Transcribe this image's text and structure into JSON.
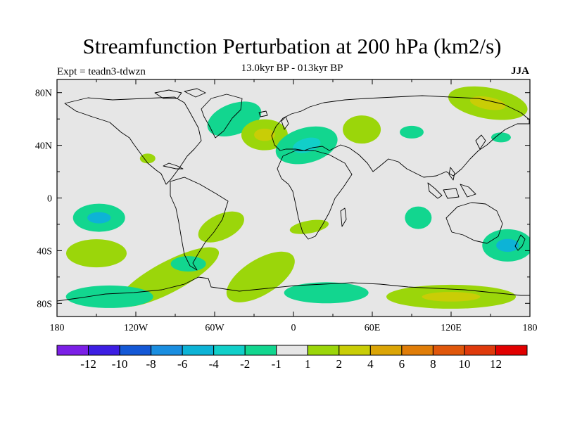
{
  "title": "Streamfunction Perturbation at 200 hPa (km2/s)",
  "experiment": "Expt = teadn3-tdwzn",
  "subtitle": "13.0kyr BP - 013kyr BP",
  "season": "JJA",
  "axes": {
    "lon_labels": [
      "180",
      "120W",
      "60W",
      "0",
      "60E",
      "120E",
      "180"
    ],
    "lat_labels": [
      "80N",
      "40N",
      "0",
      "40S",
      "80S"
    ]
  },
  "colorbar": {
    "colors": [
      "#7b1fe6",
      "#3d1ee3",
      "#1458d6",
      "#1a8ee0",
      "#0db3d6",
      "#11cfc9",
      "#12d68f",
      "#e6e6e6",
      "#9bd60a",
      "#c9cd06",
      "#dba506",
      "#e07d08",
      "#e0570b",
      "#df3a0c",
      "#e10000"
    ],
    "labels": [
      "-12",
      "-10",
      "-8",
      "-6",
      "-4",
      "-2",
      "-1",
      "1",
      "2",
      "4",
      "6",
      "8",
      "10",
      "12"
    ]
  },
  "map_data": {
    "projection": "cylindrical-equidistant",
    "lon_range": [
      -180,
      180
    ],
    "lat_range": [
      -90,
      90
    ],
    "units": "km2/s",
    "background_color": "#e6e6e6",
    "anomalies": [
      {
        "name": "north-atlantic-greenland",
        "lon": -45,
        "lat": 60,
        "value": -1.5,
        "color": "#12d68f"
      },
      {
        "name": "mid-atlantic-high",
        "lon": -22,
        "lat": 48,
        "value": 2.5,
        "color": "#9bd60a",
        "core_color": "#c9cd06"
      },
      {
        "name": "mediterranean",
        "lon": 10,
        "lat": 40,
        "value": -1.5,
        "color": "#12d68f",
        "core_color": "#11cfc9"
      },
      {
        "name": "caspian-high",
        "lon": 52,
        "lat": 52,
        "value": 1.5,
        "color": "#9bd60a"
      },
      {
        "name": "central-asia-low",
        "lon": 90,
        "lat": 50,
        "value": -1.5,
        "color": "#12d68f"
      },
      {
        "name": "siberia-arctic-high",
        "lon": 148,
        "lat": 72,
        "value": 2.5,
        "color": "#9bd60a",
        "core_color": "#c9cd06"
      },
      {
        "name": "kamchatka-low",
        "lon": 158,
        "lat": 46,
        "value": -1.5,
        "color": "#12d68f"
      },
      {
        "name": "mexico-high",
        "lon": -111,
        "lat": 30,
        "value": 1.5,
        "color": "#9bd60a"
      },
      {
        "name": "south-pacific-low",
        "lon": -148,
        "lat": -15,
        "value": -3,
        "color": "#12d68f",
        "core_color": "#0db3d6"
      },
      {
        "name": "south-pacific-high",
        "lon": -150,
        "lat": -42,
        "value": 1.5,
        "color": "#9bd60a"
      },
      {
        "name": "south-america-high",
        "lon": -55,
        "lat": -22,
        "value": 1.5,
        "color": "#9bd60a"
      },
      {
        "name": "south-atlantic-high",
        "lon": 12,
        "lat": -22,
        "value": 1.5,
        "color": "#9bd60a"
      },
      {
        "name": "madagascar-low",
        "lon": 95,
        "lat": -15,
        "value": -1.5,
        "color": "#12d68f"
      },
      {
        "name": "tasman-low",
        "lon": 163,
        "lat": -36,
        "value": -3,
        "color": "#12d68f",
        "core_color": "#0db3d6"
      },
      {
        "name": "southern-ocean-band",
        "lon": -95,
        "lat": -60,
        "value": 1.5,
        "color": "#9bd60a"
      },
      {
        "name": "drake-passage-low",
        "lon": -80,
        "lat": -50,
        "value": -1.5,
        "color": "#12d68f"
      },
      {
        "name": "ross-sea-low",
        "lon": -140,
        "lat": -75,
        "value": -3,
        "color": "#12d68f"
      },
      {
        "name": "weddell-high",
        "lon": -25,
        "lat": -60,
        "value": 2,
        "color": "#9bd60a"
      },
      {
        "name": "antarctic-low",
        "lon": 25,
        "lat": -72,
        "value": -1.5,
        "color": "#12d68f"
      },
      {
        "name": "east-antarctic-high",
        "lon": 120,
        "lat": -75,
        "value": 2.5,
        "color": "#9bd60a",
        "core_color": "#c9cd06"
      }
    ]
  }
}
